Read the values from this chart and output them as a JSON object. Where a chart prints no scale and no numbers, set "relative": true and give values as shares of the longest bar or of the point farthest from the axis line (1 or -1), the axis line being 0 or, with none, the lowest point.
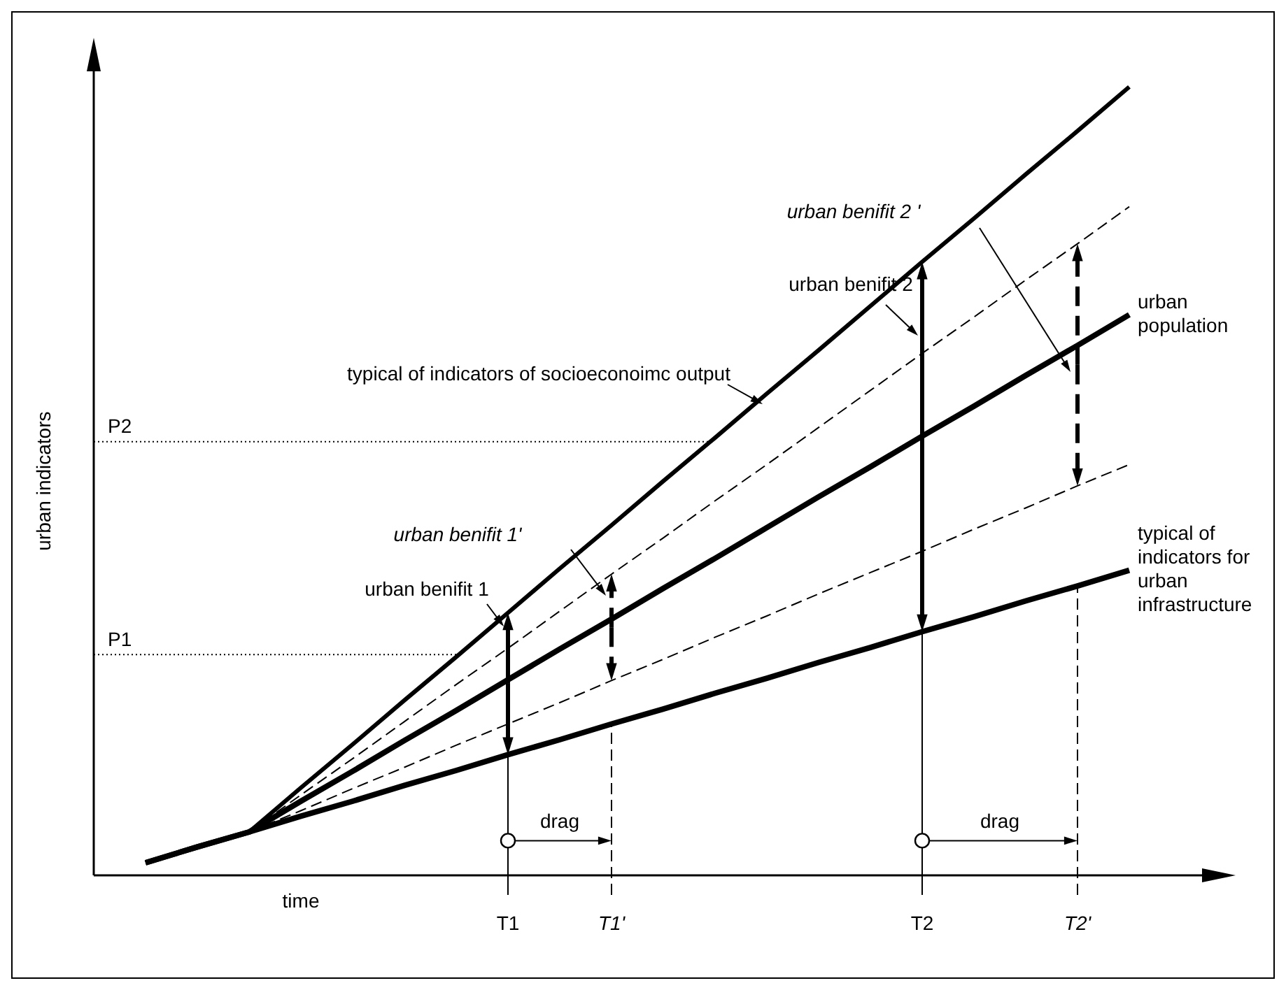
{
  "chart_data": {
    "type": "line",
    "relative": true,
    "xlabel": "time",
    "ylabel": "urban indicators",
    "categories": [
      null,
      null,
      null,
      null,
      null,
      null,
      null,
      "T1",
      null,
      "T1'",
      null,
      null,
      null,
      null,
      null,
      "T2",
      null,
      null,
      "T2'",
      null
    ],
    "series": [
      {
        "name": "typical of indicators of socioeconoimc output",
        "color": "#000000",
        "line_style": "solid",
        "values": [
          0.016,
          0.036,
          0.055,
          0.111,
          0.166,
          0.222,
          0.277,
          0.333,
          0.389,
          0.444,
          0.5,
          0.555,
          0.611,
          0.666,
          0.722,
          0.778,
          0.833,
          0.889,
          0.944,
          1.0
        ]
      },
      {
        "color": "#000000",
        "line_style": "dashed",
        "values": [
          null,
          null,
          0.055,
          0.102,
          0.148,
          0.195,
          0.242,
          0.288,
          0.335,
          0.382,
          0.428,
          0.475,
          0.521,
          0.568,
          0.615,
          0.662,
          0.708,
          0.755,
          0.801,
          0.848
        ]
      },
      {
        "name": "urban population",
        "color": "#000000",
        "line_style": "solid",
        "values": [
          0.016,
          0.036,
          0.055,
          0.094,
          0.132,
          0.171,
          0.209,
          0.248,
          0.287,
          0.325,
          0.364,
          0.402,
          0.441,
          0.48,
          0.518,
          0.557,
          0.595,
          0.634,
          0.672,
          0.711
        ]
      },
      {
        "color": "#000000",
        "line_style": "dashed",
        "values": [
          null,
          null,
          0.055,
          0.082,
          0.11,
          0.137,
          0.165,
          0.192,
          0.219,
          0.247,
          0.274,
          0.302,
          0.329,
          0.357,
          0.384,
          0.411,
          0.439,
          0.466,
          0.494,
          0.521
        ]
      },
      {
        "name": "typical of indicators for urban infrastructure",
        "color": "#000000",
        "line_style": "solid",
        "values": [
          0.016,
          0.036,
          0.055,
          0.075,
          0.094,
          0.114,
          0.133,
          0.153,
          0.172,
          0.192,
          0.211,
          0.231,
          0.25,
          0.27,
          0.289,
          0.309,
          0.328,
          0.348,
          0.367,
          0.387
        ]
      }
    ],
    "ref_lines": [
      {
        "axis": "y",
        "value": 0.28,
        "label": "P1",
        "line_style": "dotted"
      },
      {
        "axis": "y",
        "value": 0.55,
        "label": "P2",
        "line_style": "dotted"
      },
      {
        "axis": "x",
        "value": "T1",
        "line_style": "solid"
      },
      {
        "axis": "x",
        "value": "T1'",
        "line_style": "dashed"
      },
      {
        "axis": "x",
        "value": "T2",
        "line_style": "solid"
      },
      {
        "axis": "x",
        "value": "T2'",
        "line_style": "dashed"
      }
    ],
    "annotations": [
      "urban benifit 1",
      "urban benifit 1'",
      "urban benifit 2",
      "urban benifit 2 '",
      "drag",
      "drag"
    ]
  }
}
